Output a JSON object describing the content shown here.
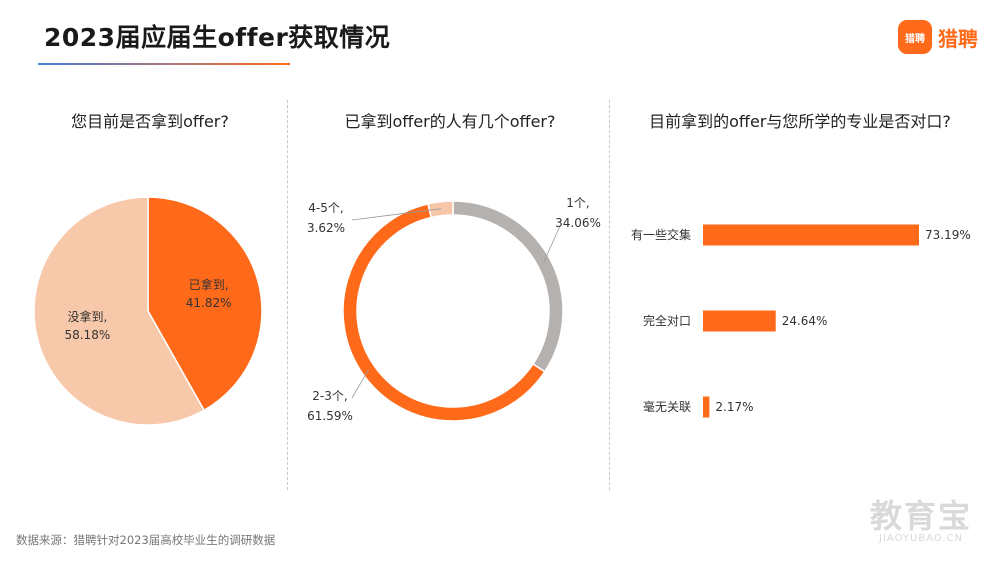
{
  "header": {
    "title": "2023届应届生offer获取情况",
    "brand_logo_text": "猎聘",
    "brand_name": "猎聘"
  },
  "source_note": "数据来源：猎聘针对2023届高校毕业生的调研数据",
  "watermark": {
    "main": "教育宝",
    "sub": "JIAOYUBAO.CN"
  },
  "colors": {
    "orange": "#ff6a1a",
    "peach": "#f7c9aa",
    "gray": "#b4b1af",
    "light_peach": "#f7c6a8"
  },
  "chart_data": [
    {
      "type": "pie",
      "title": "您目前是否拿到offer?",
      "slices": [
        {
          "label": "已拿到,",
          "value": 41.82,
          "value_text": "41.82%",
          "color": "#ff6a1a"
        },
        {
          "label": "没拿到,",
          "value": 58.18,
          "value_text": "58.18%",
          "color": "#f7c9aa"
        }
      ]
    },
    {
      "type": "pie",
      "subtype": "donut",
      "title": "已拿到offer的人有几个offer?",
      "slices": [
        {
          "label": "1个,",
          "value": 34.06,
          "value_text": "34.06%",
          "color": "#b4b1af"
        },
        {
          "label": "2-3个,",
          "value": 61.59,
          "value_text": "61.59%",
          "color": "#ff6a1a"
        },
        {
          "label": "4-5个,",
          "value": 3.62,
          "value_text": "3.62%",
          "color": "#f7c6a8"
        }
      ]
    },
    {
      "type": "bar",
      "orientation": "horizontal",
      "title": "目前拿到的offer与您所学的专业是否对口?",
      "categories": [
        "有一些交集",
        "完全对口",
        "毫无关联"
      ],
      "values": [
        73.19,
        24.64,
        2.17
      ],
      "value_texts": [
        "73.19%",
        "24.64%",
        "2.17%"
      ],
      "color": "#ff6a1a"
    }
  ]
}
